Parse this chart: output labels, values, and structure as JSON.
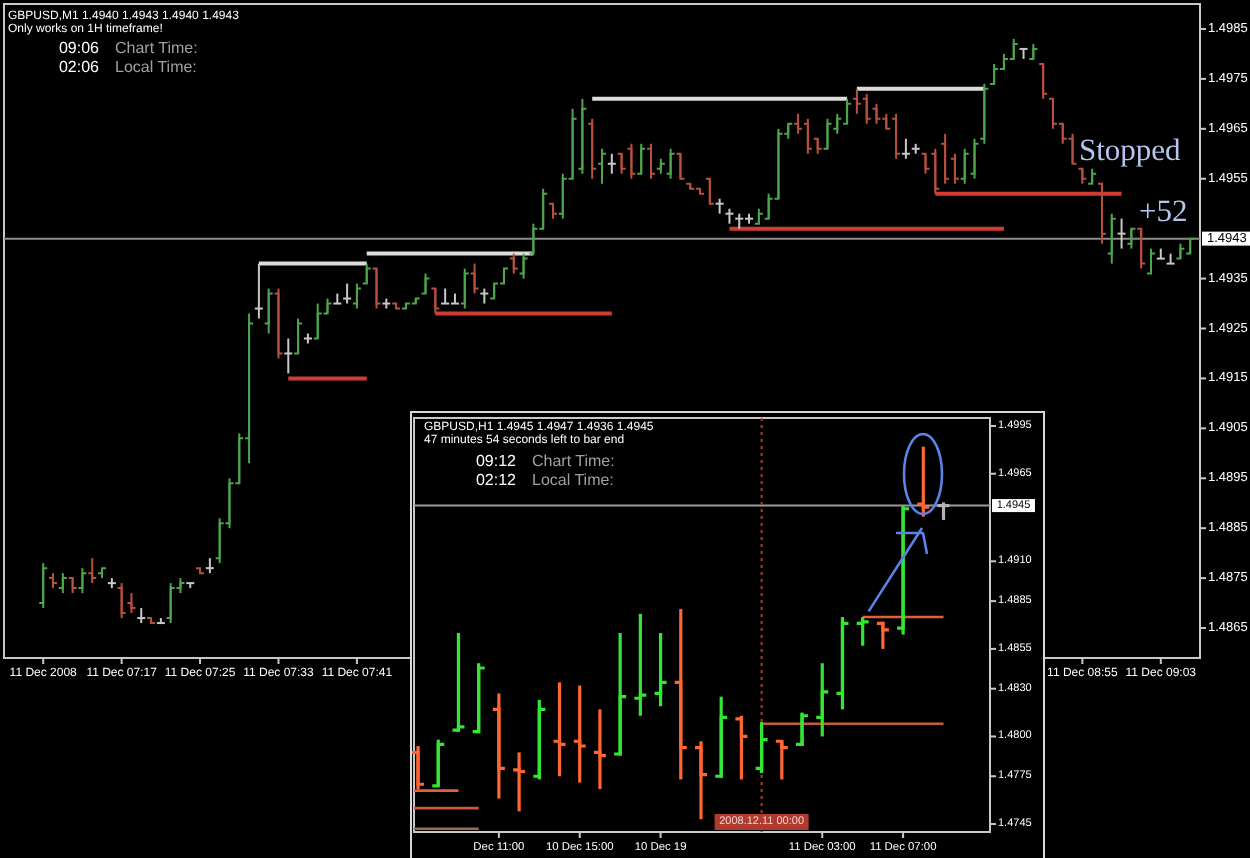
{
  "chart_data": [
    {
      "type": "candlestick",
      "title": "GBPUSD,M1 1.4940 1.4943 1.4940 1.4943",
      "subtitle": "Only works on 1H timeframe!",
      "annotations": [
        "09:06",
        "Chart Time:",
        "02:06",
        "Local Time:",
        "Stopped",
        "+52"
      ],
      "x": [
        "2008-12-11T07:09",
        "2008-12-11T07:10",
        "2008-12-11T07:11",
        "2008-12-11T07:12",
        "2008-12-11T07:13",
        "2008-12-11T07:14",
        "2008-12-11T07:15",
        "2008-12-11T07:16",
        "2008-12-11T07:17",
        "2008-12-11T07:18",
        "2008-12-11T07:19",
        "2008-12-11T07:20",
        "2008-12-11T07:21",
        "2008-12-11T07:22",
        "2008-12-11T07:23",
        "2008-12-11T07:24",
        "2008-12-11T07:25",
        "2008-12-11T07:26",
        "2008-12-11T07:27",
        "2008-12-11T07:28",
        "2008-12-11T07:29",
        "2008-12-11T07:30",
        "2008-12-11T07:31",
        "2008-12-11T07:32",
        "2008-12-11T07:33",
        "2008-12-11T07:34",
        "2008-12-11T07:35",
        "2008-12-11T07:36",
        "2008-12-11T07:37",
        "2008-12-11T07:38",
        "2008-12-11T07:39",
        "2008-12-11T07:40",
        "2008-12-11T07:41",
        "2008-12-11T07:42",
        "2008-12-11T07:43",
        "2008-12-11T07:44",
        "2008-12-11T07:45",
        "2008-12-11T07:46",
        "2008-12-11T07:47",
        "2008-12-11T07:48",
        "2008-12-11T07:49",
        "2008-12-11T07:50",
        "2008-12-11T07:51",
        "2008-12-11T07:52",
        "2008-12-11T07:53",
        "2008-12-11T07:54",
        "2008-12-11T07:55",
        "2008-12-11T07:56",
        "2008-12-11T07:57",
        "2008-12-11T07:58",
        "2008-12-11T07:59",
        "2008-12-11T08:00",
        "2008-12-11T08:01",
        "2008-12-11T08:02",
        "2008-12-11T08:03",
        "2008-12-11T08:04",
        "2008-12-11T08:05",
        "2008-12-11T08:06",
        "2008-12-11T08:07",
        "2008-12-11T08:08",
        "2008-12-11T08:09",
        "2008-12-11T08:10",
        "2008-12-11T08:11",
        "2008-12-11T08:12",
        "2008-12-11T08:13",
        "2008-12-11T08:14",
        "2008-12-11T08:15",
        "2008-12-11T08:16",
        "2008-12-11T08:17",
        "2008-12-11T08:18",
        "2008-12-11T08:19",
        "2008-12-11T08:20",
        "2008-12-11T08:21",
        "2008-12-11T08:22",
        "2008-12-11T08:23",
        "2008-12-11T08:24",
        "2008-12-11T08:25",
        "2008-12-11T08:26",
        "2008-12-11T08:27",
        "2008-12-11T08:28",
        "2008-12-11T08:29",
        "2008-12-11T08:30",
        "2008-12-11T08:31",
        "2008-12-11T08:32",
        "2008-12-11T08:33",
        "2008-12-11T08:34",
        "2008-12-11T08:35",
        "2008-12-11T08:36",
        "2008-12-11T08:37",
        "2008-12-11T08:38",
        "2008-12-11T08:39",
        "2008-12-11T08:40",
        "2008-12-11T08:41",
        "2008-12-11T08:42",
        "2008-12-11T08:43",
        "2008-12-11T08:44",
        "2008-12-11T08:45",
        "2008-12-11T08:46",
        "2008-12-11T08:47",
        "2008-12-11T08:48",
        "2008-12-11T08:49",
        "2008-12-11T08:50",
        "2008-12-11T08:51",
        "2008-12-11T08:52",
        "2008-12-11T08:53",
        "2008-12-11T08:54",
        "2008-12-11T08:55",
        "2008-12-11T08:56",
        "2008-12-11T08:57",
        "2008-12-11T08:58",
        "2008-12-11T08:59",
        "2008-12-11T09:00",
        "2008-12-11T09:01",
        "2008-12-11T09:02",
        "2008-12-11T09:03",
        "2008-12-11T09:04",
        "2008-12-11T09:05",
        "2008-12-11T09:06"
      ],
      "ohlc": [
        [
          1.487,
          1.4878,
          1.4869,
          1.4877
        ],
        [
          1.4875,
          1.4876,
          1.4873,
          1.4874
        ],
        [
          1.4873,
          1.4876,
          1.4872,
          1.4875
        ],
        [
          1.4875,
          1.4875,
          1.4872,
          1.4873
        ],
        [
          1.4873,
          1.4877,
          1.4872,
          1.4876
        ],
        [
          1.4876,
          1.4879,
          1.4874,
          1.4875
        ],
        [
          1.4876,
          1.4877,
          1.4875,
          1.4877
        ],
        [
          1.4874,
          1.4875,
          1.4873,
          1.4874
        ],
        [
          1.4873,
          1.4874,
          1.4867,
          1.4868
        ],
        [
          1.487,
          1.4872,
          1.4868,
          1.4869
        ],
        [
          1.4867,
          1.4869,
          1.4866,
          1.4867
        ],
        [
          1.4867,
          1.4867,
          1.4866,
          1.4866
        ],
        [
          1.4866,
          1.4867,
          1.4866,
          1.4866
        ],
        [
          1.4867,
          1.4874,
          1.4866,
          1.4873
        ],
        [
          1.4873,
          1.4875,
          1.4872,
          1.4874
        ],
        [
          1.4874,
          1.4874,
          1.4873,
          1.4874
        ],
        [
          1.4877,
          1.4877,
          1.4876,
          1.4876
        ],
        [
          1.4877,
          1.4879,
          1.4876,
          1.4877
        ],
        [
          1.4879,
          1.4887,
          1.4878,
          1.4886
        ],
        [
          1.4886,
          1.4895,
          1.4885,
          1.4894
        ],
        [
          1.4894,
          1.4904,
          1.4894,
          1.4903
        ],
        [
          1.4903,
          1.4928,
          1.4898,
          1.4926
        ],
        [
          1.4929,
          1.4938,
          1.4927,
          1.4929
        ],
        [
          1.4926,
          1.4933,
          1.4924,
          1.4932
        ],
        [
          1.4932,
          1.4933,
          1.4919,
          1.492
        ],
        [
          1.492,
          1.4923,
          1.4916,
          1.492
        ],
        [
          1.492,
          1.4927,
          1.492,
          1.4926
        ],
        [
          1.4923,
          1.4924,
          1.4922,
          1.4923
        ],
        [
          1.4923,
          1.493,
          1.4923,
          1.4928
        ],
        [
          1.4928,
          1.4931,
          1.4928,
          1.493
        ],
        [
          1.493,
          1.4932,
          1.493,
          1.493
        ],
        [
          1.4931,
          1.4934,
          1.493,
          1.4931
        ],
        [
          1.493,
          1.4934,
          1.4929,
          1.4933
        ],
        [
          1.4934,
          1.4938,
          1.4934,
          1.4937
        ],
        [
          1.4937,
          1.4937,
          1.4929,
          1.493
        ],
        [
          1.493,
          1.4931,
          1.4929,
          1.493
        ],
        [
          1.493,
          1.493,
          1.4929,
          1.4929
        ],
        [
          1.4929,
          1.493,
          1.4929,
          1.493
        ],
        [
          1.493,
          1.4931,
          1.493,
          1.4931
        ],
        [
          1.4932,
          1.4936,
          1.4932,
          1.4935
        ],
        [
          1.4933,
          1.4933,
          1.4928,
          1.4929
        ],
        [
          1.493,
          1.4933,
          1.493,
          1.493
        ],
        [
          1.493,
          1.4932,
          1.493,
          1.493
        ],
        [
          1.493,
          1.4937,
          1.4929,
          1.4936
        ],
        [
          1.4936,
          1.4938,
          1.4932,
          1.4933
        ],
        [
          1.4932,
          1.4933,
          1.493,
          1.4932
        ],
        [
          1.4931,
          1.4934,
          1.4931,
          1.4934
        ],
        [
          1.4934,
          1.4937,
          1.4934,
          1.4937
        ],
        [
          1.4939,
          1.494,
          1.4936,
          1.4937
        ],
        [
          1.4936,
          1.494,
          1.4935,
          1.4939
        ],
        [
          1.494,
          1.4946,
          1.494,
          1.4945
        ],
        [
          1.4945,
          1.4953,
          1.4945,
          1.4952
        ],
        [
          1.495,
          1.495,
          1.4947,
          1.4948
        ],
        [
          1.4948,
          1.4956,
          1.4947,
          1.4955
        ],
        [
          1.4955,
          1.4969,
          1.4955,
          1.4967
        ],
        [
          1.4957,
          1.4971,
          1.4956,
          1.4969
        ],
        [
          1.4966,
          1.4967,
          1.4955,
          1.4957
        ],
        [
          1.4958,
          1.4961,
          1.4954,
          1.496
        ],
        [
          1.4958,
          1.496,
          1.4956,
          1.4958
        ],
        [
          1.496,
          1.496,
          1.4956,
          1.4957
        ],
        [
          1.4961,
          1.4962,
          1.4955,
          1.4956
        ],
        [
          1.4956,
          1.4962,
          1.4956,
          1.4961
        ],
        [
          1.4961,
          1.4962,
          1.4955,
          1.4956
        ],
        [
          1.4957,
          1.4959,
          1.4956,
          1.4958
        ],
        [
          1.4956,
          1.4961,
          1.4955,
          1.496
        ],
        [
          1.496,
          1.496,
          1.4955,
          1.4955
        ],
        [
          1.4954,
          1.4954,
          1.4953,
          1.4953
        ],
        [
          1.4953,
          1.4953,
          1.4952,
          1.4952
        ],
        [
          1.4955,
          1.4955,
          1.495,
          1.495
        ],
        [
          1.495,
          1.4951,
          1.4948,
          1.495
        ],
        [
          1.4948,
          1.4949,
          1.4946,
          1.4948
        ],
        [
          1.4947,
          1.4948,
          1.4945,
          1.4947
        ],
        [
          1.4947,
          1.4948,
          1.4946,
          1.4947
        ],
        [
          1.4946,
          1.4949,
          1.4946,
          1.4948
        ],
        [
          1.4947,
          1.4952,
          1.4947,
          1.4951
        ],
        [
          1.4951,
          1.4965,
          1.4951,
          1.4964
        ],
        [
          1.4964,
          1.4966,
          1.4963,
          1.4966
        ],
        [
          1.4966,
          1.4968,
          1.4964,
          1.4965
        ],
        [
          1.4966,
          1.4967,
          1.496,
          1.4961
        ],
        [
          1.4963,
          1.4963,
          1.496,
          1.4961
        ],
        [
          1.4961,
          1.4967,
          1.4961,
          1.4966
        ],
        [
          1.4965,
          1.4968,
          1.4964,
          1.4967
        ],
        [
          1.4966,
          1.4971,
          1.4966,
          1.497
        ],
        [
          1.4971,
          1.4973,
          1.4968,
          1.497
        ],
        [
          1.4971,
          1.4972,
          1.4966,
          1.4967
        ],
        [
          1.4969,
          1.497,
          1.4966,
          1.4967
        ],
        [
          1.4967,
          1.4968,
          1.4965,
          1.4965
        ],
        [
          1.4967,
          1.4968,
          1.4959,
          1.496
        ],
        [
          1.496,
          1.4963,
          1.4959,
          1.496
        ],
        [
          1.4961,
          1.4962,
          1.496,
          1.4961
        ],
        [
          1.496,
          1.496,
          1.4956,
          1.4957
        ],
        [
          1.496,
          1.4961,
          1.4952,
          1.4953
        ],
        [
          1.4962,
          1.4964,
          1.4954,
          1.4955
        ],
        [
          1.4959,
          1.496,
          1.4954,
          1.4955
        ],
        [
          1.4955,
          1.4961,
          1.4954,
          1.496
        ],
        [
          1.4956,
          1.4963,
          1.4955,
          1.4962
        ],
        [
          1.4963,
          1.4974,
          1.4962,
          1.4973
        ],
        [
          1.4974,
          1.4978,
          1.4974,
          1.4977
        ],
        [
          1.4977,
          1.498,
          1.4977,
          1.4979
        ],
        [
          1.4979,
          1.4983,
          1.4979,
          1.4982
        ],
        [
          1.4981,
          1.4981,
          1.4979,
          1.4981
        ],
        [
          1.4979,
          1.4982,
          1.4979,
          1.4981
        ],
        [
          1.4978,
          1.4978,
          1.4971,
          1.4972
        ],
        [
          1.4971,
          1.4971,
          1.4965,
          1.4966
        ],
        [
          1.4966,
          1.4966,
          1.4962,
          1.4963
        ],
        [
          1.4963,
          1.4964,
          1.4958,
          1.4958
        ],
        [
          1.4957,
          1.4957,
          1.4954,
          1.4955
        ],
        [
          1.4954,
          1.4957,
          1.4954,
          1.4956
        ],
        [
          1.4954,
          1.4954,
          1.4942,
          1.4944
        ],
        [
          1.494,
          1.4948,
          1.4938,
          1.4947
        ],
        [
          1.4944,
          1.4947,
          1.4941,
          1.4944
        ],
        [
          1.4942,
          1.4945,
          1.4941,
          1.4945
        ],
        [
          1.4945,
          1.4945,
          1.4937,
          1.4938
        ],
        [
          1.4936,
          1.4941,
          1.4936,
          1.494
        ],
        [
          1.4939,
          1.4941,
          1.4939,
          1.4939
        ],
        [
          1.4938,
          1.494,
          1.4938,
          1.4938
        ],
        [
          1.4939,
          1.4942,
          1.4939,
          1.4941
        ],
        [
          1.494,
          1.4943,
          1.494,
          1.4943
        ]
      ],
      "colors": [
        "#4da64d",
        "#b8503e",
        "#4da64d",
        "#b8503e",
        "#4da64d",
        "#b8503e",
        "#4da64d",
        "#c8c8c8",
        "#b8503e",
        "#b8503e",
        "#c8c8c8",
        "#b8503e",
        "#c8c8c8",
        "#4da64d",
        "#4da64d",
        "#c8c8c8",
        "#b8503e",
        "#c8c8c8",
        "#4da64d",
        "#4da64d",
        "#4da64d",
        "#4da64d",
        "#c8c8c8",
        "#4da64d",
        "#b8503e",
        "#c8c8c8",
        "#4da64d",
        "#c8c8c8",
        "#4da64d",
        "#4da64d",
        "#c8c8c8",
        "#c8c8c8",
        "#4da64d",
        "#4da64d",
        "#b8503e",
        "#c8c8c8",
        "#b8503e",
        "#4da64d",
        "#4da64d",
        "#4da64d",
        "#b8503e",
        "#c8c8c8",
        "#c8c8c8",
        "#4da64d",
        "#b8503e",
        "#c8c8c8",
        "#4da64d",
        "#4da64d",
        "#b8503e",
        "#4da64d",
        "#4da64d",
        "#4da64d",
        "#b8503e",
        "#4da64d",
        "#4da64d",
        "#4da64d",
        "#b8503e",
        "#4da64d",
        "#c8c8c8",
        "#b8503e",
        "#b8503e",
        "#4da64d",
        "#b8503e",
        "#4da64d",
        "#4da64d",
        "#b8503e",
        "#b8503e",
        "#b8503e",
        "#b8503e",
        "#c8c8c8",
        "#c8c8c8",
        "#c8c8c8",
        "#c8c8c8",
        "#4da64d",
        "#4da64d",
        "#4da64d",
        "#4da64d",
        "#b8503e",
        "#b8503e",
        "#b8503e",
        "#4da64d",
        "#4da64d",
        "#4da64d",
        "#b8503e",
        "#b8503e",
        "#b8503e",
        "#b8503e",
        "#b8503e",
        "#c8c8c8",
        "#c8c8c8",
        "#b8503e",
        "#b8503e",
        "#b8503e",
        "#b8503e",
        "#4da64d",
        "#4da64d",
        "#4da64d",
        "#4da64d",
        "#4da64d",
        "#4da64d",
        "#c8c8c8",
        "#4da64d",
        "#b8503e",
        "#b8503e",
        "#b8503e",
        "#b8503e",
        "#b8503e",
        "#4da64d",
        "#b8503e",
        "#4da64d",
        "#c8c8c8",
        "#4da64d",
        "#b8503e",
        "#4da64d",
        "#c8c8c8",
        "#c8c8c8",
        "#4da64d",
        "#4da64d"
      ],
      "series": [
        {
          "type": "line",
          "x": [
            "2008-12-11T07:31",
            "2008-12-11T07:42"
          ],
          "values": [
            1.4938,
            1.4938
          ],
          "color": "#dcdcdc"
        },
        {
          "type": "line",
          "x": [
            "2008-12-11T07:42",
            "2008-12-11T07:59"
          ],
          "values": [
            1.494,
            1.494
          ],
          "color": "#dcdcdc"
        },
        {
          "type": "line",
          "x": [
            "2008-12-11T08:05",
            "2008-12-11T08:31"
          ],
          "values": [
            1.4971,
            1.4971
          ],
          "color": "#dcdcdc"
        },
        {
          "type": "line",
          "x": [
            "2008-12-11T08:32",
            "2008-12-11T08:45"
          ],
          "values": [
            1.4973,
            1.4973
          ],
          "color": "#dcdcdc"
        },
        {
          "type": "line",
          "x": [
            "2008-12-11T07:34",
            "2008-12-11T07:42"
          ],
          "values": [
            1.4915,
            1.4915
          ],
          "color": "#d03c32"
        },
        {
          "type": "line",
          "x": [
            "2008-12-11T07:49",
            "2008-12-11T08:07"
          ],
          "values": [
            1.4928,
            1.4928
          ],
          "color": "#d03c32"
        },
        {
          "type": "line",
          "x": [
            "2008-12-11T08:19",
            "2008-12-11T08:47"
          ],
          "values": [
            1.4945,
            1.4945
          ],
          "color": "#d03c32"
        },
        {
          "type": "line",
          "x": [
            "2008-12-11T08:40",
            "2008-12-11T08:59"
          ],
          "values": [
            1.4952,
            1.4952
          ],
          "color": "#d03c32"
        }
      ],
      "ref_lines": [
        {
          "axis": "y",
          "value": 1.4943,
          "label": "1.4943",
          "color": "#8c8c8c"
        }
      ],
      "xlim": [
        "2008-12-11T07:05",
        "2008-12-11T09:07"
      ],
      "xticks": [
        {
          "value": "2008-12-11T07:09",
          "label": "11 Dec 2008"
        },
        {
          "value": "2008-12-11T07:17",
          "label": "11 Dec 07:17"
        },
        {
          "value": "2008-12-11T07:25",
          "label": "11 Dec 07:25"
        },
        {
          "value": "2008-12-11T07:33",
          "label": "11 Dec 07:33"
        },
        {
          "value": "2008-12-11T07:41",
          "label": "11 Dec 07:41"
        },
        {
          "value": "2008-12-11T08:55",
          "label": "11 Dec 08:55"
        },
        {
          "value": "2008-12-11T09:03",
          "label": "11 Dec 09:03"
        }
      ],
      "ylim": [
        1.4859,
        1.499
      ],
      "yticks": [
        1.4985,
        1.4975,
        1.4965,
        1.4955,
        1.4935,
        1.4925,
        1.4915,
        1.4905,
        1.4895,
        1.4885,
        1.4875,
        1.4865
      ]
    },
    {
      "type": "candlestick",
      "title": "GBPUSD,H1 1.4945 1.4947 1.4936 1.4945",
      "subtitle": "47 minutes 54 seconds left to bar end",
      "annotations": [
        "09:12",
        "Chart Time:",
        "02:12",
        "Local Time:"
      ],
      "x": [
        "2008-12-10T07:00",
        "2008-12-10T08:00",
        "2008-12-10T09:00",
        "2008-12-10T10:00",
        "2008-12-10T11:00",
        "2008-12-10T12:00",
        "2008-12-10T13:00",
        "2008-12-10T14:00",
        "2008-12-10T15:00",
        "2008-12-10T16:00",
        "2008-12-10T17:00",
        "2008-12-10T18:00",
        "2008-12-10T19:00",
        "2008-12-10T20:00",
        "2008-12-10T21:00",
        "2008-12-10T22:00",
        "2008-12-10T23:00",
        "2008-12-11T00:00",
        "2008-12-11T01:00",
        "2008-12-11T02:00",
        "2008-12-11T03:00",
        "2008-12-11T04:00",
        "2008-12-11T05:00",
        "2008-12-11T06:00",
        "2008-12-11T07:00",
        "2008-12-11T08:00",
        "2008-12-11T09:00"
      ],
      "ohlc": [
        [
          1.479,
          1.4794,
          1.4767,
          1.477
        ],
        [
          1.4769,
          1.4798,
          1.4769,
          1.4795
        ],
        [
          1.4804,
          1.4865,
          1.4803,
          1.4806
        ],
        [
          1.4803,
          1.4846,
          1.4802,
          1.4843
        ],
        [
          1.4817,
          1.4827,
          1.4761,
          1.478
        ],
        [
          1.4779,
          1.479,
          1.4753,
          1.4778
        ],
        [
          1.4775,
          1.4823,
          1.4773,
          1.4817
        ],
        [
          1.4797,
          1.4834,
          1.4775,
          1.4795
        ],
        [
          1.4797,
          1.4832,
          1.4771,
          1.4794
        ],
        [
          1.479,
          1.4817,
          1.4767,
          1.4788
        ],
        [
          1.4789,
          1.4865,
          1.4788,
          1.4825
        ],
        [
          1.4824,
          1.4877,
          1.4813,
          1.4826
        ],
        [
          1.4827,
          1.4865,
          1.4819,
          1.4834
        ],
        [
          1.4834,
          1.488,
          1.4773,
          1.4793
        ],
        [
          1.4793,
          1.4797,
          1.4748,
          1.4776
        ],
        [
          1.4775,
          1.4825,
          1.4774,
          1.4812
        ],
        [
          1.4811,
          1.4813,
          1.4773,
          1.48
        ],
        [
          1.478,
          1.4809,
          1.4777,
          1.4798
        ],
        [
          1.4797,
          1.4797,
          1.4773,
          1.4793
        ],
        [
          1.4795,
          1.4815,
          1.4794,
          1.4813
        ],
        [
          1.4812,
          1.4846,
          1.48,
          1.4828
        ],
        [
          1.4827,
          1.4875,
          1.4817,
          1.4871
        ],
        [
          1.4871,
          1.4875,
          1.4857,
          1.4872
        ],
        [
          1.4871,
          1.4872,
          1.4855,
          1.4867
        ],
        [
          1.4868,
          1.4945,
          1.4864,
          1.4943
        ],
        [
          1.4946,
          1.4982,
          1.4938,
          1.4944
        ],
        [
          1.4945,
          1.4947,
          1.4936,
          1.4945
        ]
      ],
      "colors": [
        "#ff6633",
        "#33e633",
        "#33e633",
        "#33e633",
        "#ff6633",
        "#ff6633",
        "#33e633",
        "#ff6633",
        "#ff6633",
        "#ff6633",
        "#33e633",
        "#33e633",
        "#33e633",
        "#ff6633",
        "#ff6633",
        "#33e633",
        "#ff6633",
        "#33e633",
        "#ff6633",
        "#33e633",
        "#33e633",
        "#33e633",
        "#33e633",
        "#ff6633",
        "#33e633",
        "#ff6633",
        "#b4b4b4"
      ],
      "series": [
        {
          "type": "line",
          "x": [
            "2008-12-11T05:00",
            "2008-12-11T09:00"
          ],
          "values": [
            1.4875,
            1.4875
          ],
          "color": "#e0603e"
        },
        {
          "type": "line",
          "x": [
            "2008-12-11T00:00",
            "2008-12-11T09:00"
          ],
          "values": [
            1.4808,
            1.4808
          ],
          "color": "#c85a3c"
        },
        {
          "type": "line",
          "x": [
            "2008-12-10T06:48",
            "2008-12-10T09:00"
          ],
          "values": [
            1.4766,
            1.4766
          ],
          "color": "#e0603e"
        },
        {
          "type": "line",
          "x": [
            "2008-12-10T06:48",
            "2008-12-10T10:00"
          ],
          "values": [
            1.4755,
            1.4755
          ],
          "color": "#c85a3c"
        },
        {
          "type": "line",
          "x": [
            "2008-12-10T06:48",
            "2008-12-10T10:00"
          ],
          "values": [
            1.4742,
            1.4742
          ],
          "color": "#9a6a50"
        }
      ],
      "ref_lines": [
        {
          "axis": "y",
          "value": 1.4945,
          "label": "1.4945",
          "color": "#9a9a9a"
        },
        {
          "axis": "x",
          "value": "2008-12-11T00:00",
          "label": "2008.12.11 00:00",
          "color": "#b03a2e",
          "line_style": "dotted"
        }
      ],
      "xlim": [
        "2008-12-10T06:48",
        "2008-12-11T11:18"
      ],
      "xticks": [
        {
          "value": "2008-12-10T11:00",
          "label": "Dec 11:00"
        },
        {
          "value": "2008-12-10T15:00",
          "label": "10 Dec 15:00"
        },
        {
          "value": "2008-12-10T19:00",
          "label": "10 Dec 19"
        },
        {
          "value": "2008-12-11T03:00",
          "label": "11 Dec 03:00"
        },
        {
          "value": "2008-12-11T07:00",
          "label": "11 Dec 07:00"
        }
      ],
      "ylim": [
        1.474,
        1.5
      ],
      "yticks": [
        1.4995,
        1.4965,
        {
          "value": 1.491,
          "label": "1.4910"
        },
        1.4885,
        1.4855,
        {
          "value": 1.483,
          "label": "1.4830"
        },
        {
          "value": 1.48,
          "label": "1.4800"
        },
        1.4775,
        1.4745
      ]
    }
  ]
}
